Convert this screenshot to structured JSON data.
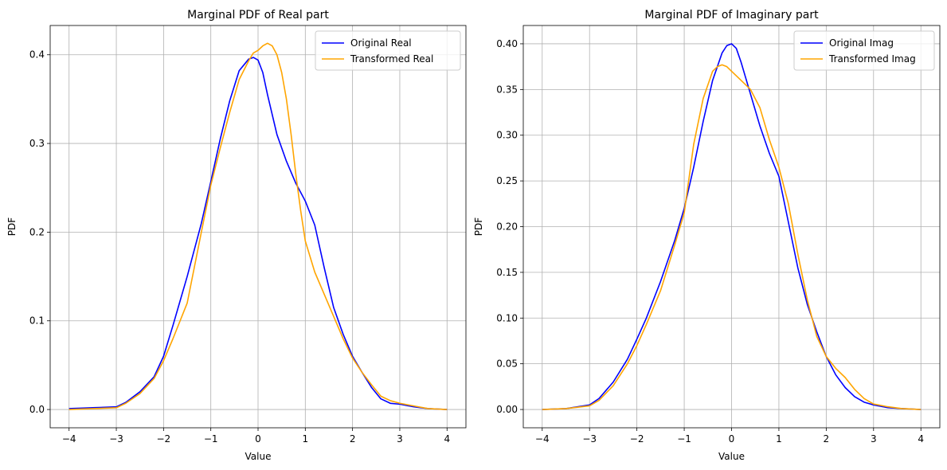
{
  "chart_data": [
    {
      "type": "line",
      "title": "Marginal PDF of Real part",
      "xlabel": "Value",
      "ylabel": "PDF",
      "xlim": [
        -4.4,
        4.4
      ],
      "ylim": [
        -0.0206,
        0.433
      ],
      "xticks": [
        -4,
        -3,
        -2,
        -1,
        0,
        1,
        2,
        3,
        4
      ],
      "xtick_labels": [
        "−4",
        "−3",
        "−2",
        "−1",
        "0",
        "1",
        "2",
        "3",
        "4"
      ],
      "yticks": [
        0.0,
        0.1,
        0.2,
        0.3,
        0.4
      ],
      "ytick_labels": [
        "0.0",
        "0.1",
        "0.2",
        "0.3",
        "0.4"
      ],
      "grid": true,
      "legend": "upper right",
      "series": [
        {
          "name": "Original Real",
          "color": "#0000ff",
          "x": [
            -4.0,
            -3.5,
            -3.0,
            -2.8,
            -2.5,
            -2.2,
            -2.0,
            -1.8,
            -1.5,
            -1.2,
            -1.0,
            -0.8,
            -0.6,
            -0.4,
            -0.2,
            -0.1,
            0.0,
            0.1,
            0.2,
            0.4,
            0.6,
            0.8,
            1.0,
            1.2,
            1.4,
            1.6,
            1.8,
            2.0,
            2.2,
            2.4,
            2.6,
            2.8,
            3.0,
            3.3,
            3.6,
            4.0
          ],
          "y": [
            0.001,
            0.002,
            0.003,
            0.008,
            0.02,
            0.037,
            0.06,
            0.095,
            0.15,
            0.21,
            0.257,
            0.305,
            0.348,
            0.382,
            0.395,
            0.397,
            0.394,
            0.38,
            0.355,
            0.31,
            0.28,
            0.255,
            0.235,
            0.208,
            0.16,
            0.115,
            0.085,
            0.06,
            0.042,
            0.025,
            0.012,
            0.007,
            0.006,
            0.003,
            0.001,
            0.0
          ]
        },
        {
          "name": "Transformed Real",
          "color": "#ffa500",
          "x": [
            -4.0,
            -3.5,
            -3.0,
            -2.8,
            -2.5,
            -2.2,
            -2.0,
            -1.8,
            -1.5,
            -1.2,
            -1.0,
            -0.8,
            -0.6,
            -0.4,
            -0.2,
            -0.1,
            0.0,
            0.1,
            0.2,
            0.3,
            0.4,
            0.5,
            0.6,
            0.7,
            0.8,
            0.9,
            1.0,
            1.2,
            1.4,
            1.6,
            1.8,
            2.0,
            2.2,
            2.4,
            2.6,
            2.8,
            3.0,
            3.3,
            3.6,
            4.0
          ],
          "y": [
            0.0,
            0.001,
            0.002,
            0.007,
            0.018,
            0.035,
            0.055,
            0.08,
            0.12,
            0.2,
            0.253,
            0.295,
            0.335,
            0.372,
            0.393,
            0.402,
            0.405,
            0.41,
            0.413,
            0.41,
            0.4,
            0.38,
            0.35,
            0.31,
            0.265,
            0.225,
            0.19,
            0.155,
            0.13,
            0.105,
            0.08,
            0.058,
            0.042,
            0.028,
            0.015,
            0.01,
            0.007,
            0.004,
            0.001,
            0.0
          ]
        }
      ]
    },
    {
      "type": "line",
      "title": "Marginal PDF of Imaginary part",
      "xlabel": "Value",
      "ylabel": "PDF",
      "xlim": [
        -4.4,
        4.4
      ],
      "ylim": [
        -0.02,
        0.42
      ],
      "xticks": [
        -4,
        -3,
        -2,
        -1,
        0,
        1,
        2,
        3,
        4
      ],
      "xtick_labels": [
        "−4",
        "−3",
        "−2",
        "−1",
        "0",
        "1",
        "2",
        "3",
        "4"
      ],
      "yticks": [
        0.0,
        0.05,
        0.1,
        0.15,
        0.2,
        0.25,
        0.3,
        0.35,
        0.4
      ],
      "ytick_labels": [
        "0.00",
        "0.05",
        "0.10",
        "0.15",
        "0.20",
        "0.25",
        "0.30",
        "0.35",
        "0.40"
      ],
      "grid": true,
      "legend": "upper right",
      "series": [
        {
          "name": "Original Imag",
          "color": "#0000ff",
          "x": [
            -4.0,
            -3.5,
            -3.0,
            -2.8,
            -2.5,
            -2.2,
            -2.0,
            -1.8,
            -1.5,
            -1.2,
            -1.0,
            -0.8,
            -0.6,
            -0.4,
            -0.2,
            -0.1,
            0.0,
            0.1,
            0.2,
            0.4,
            0.6,
            0.8,
            1.0,
            1.2,
            1.4,
            1.6,
            1.8,
            2.0,
            2.2,
            2.4,
            2.6,
            2.8,
            3.0,
            3.3,
            3.6,
            4.0
          ],
          "y": [
            0.0,
            0.001,
            0.005,
            0.012,
            0.03,
            0.055,
            0.077,
            0.1,
            0.14,
            0.185,
            0.22,
            0.265,
            0.315,
            0.36,
            0.39,
            0.398,
            0.4,
            0.395,
            0.38,
            0.345,
            0.31,
            0.28,
            0.255,
            0.205,
            0.155,
            0.115,
            0.085,
            0.058,
            0.038,
            0.024,
            0.014,
            0.008,
            0.005,
            0.002,
            0.001,
            0.0
          ]
        },
        {
          "name": "Transformed Imag",
          "color": "#ffa500",
          "x": [
            -4.0,
            -3.5,
            -3.0,
            -2.8,
            -2.5,
            -2.2,
            -2.0,
            -1.8,
            -1.5,
            -1.2,
            -1.0,
            -0.8,
            -0.6,
            -0.4,
            -0.3,
            -0.2,
            -0.1,
            0.0,
            0.2,
            0.4,
            0.6,
            0.8,
            1.0,
            1.2,
            1.4,
            1.6,
            1.8,
            2.0,
            2.2,
            2.4,
            2.6,
            2.8,
            3.0,
            3.3,
            3.6,
            4.0
          ],
          "y": [
            0.0,
            0.001,
            0.004,
            0.01,
            0.026,
            0.05,
            0.07,
            0.093,
            0.13,
            0.18,
            0.215,
            0.29,
            0.34,
            0.37,
            0.375,
            0.377,
            0.375,
            0.37,
            0.36,
            0.35,
            0.33,
            0.295,
            0.265,
            0.225,
            0.17,
            0.12,
            0.08,
            0.058,
            0.045,
            0.035,
            0.022,
            0.012,
            0.006,
            0.003,
            0.001,
            0.0
          ]
        }
      ]
    }
  ]
}
